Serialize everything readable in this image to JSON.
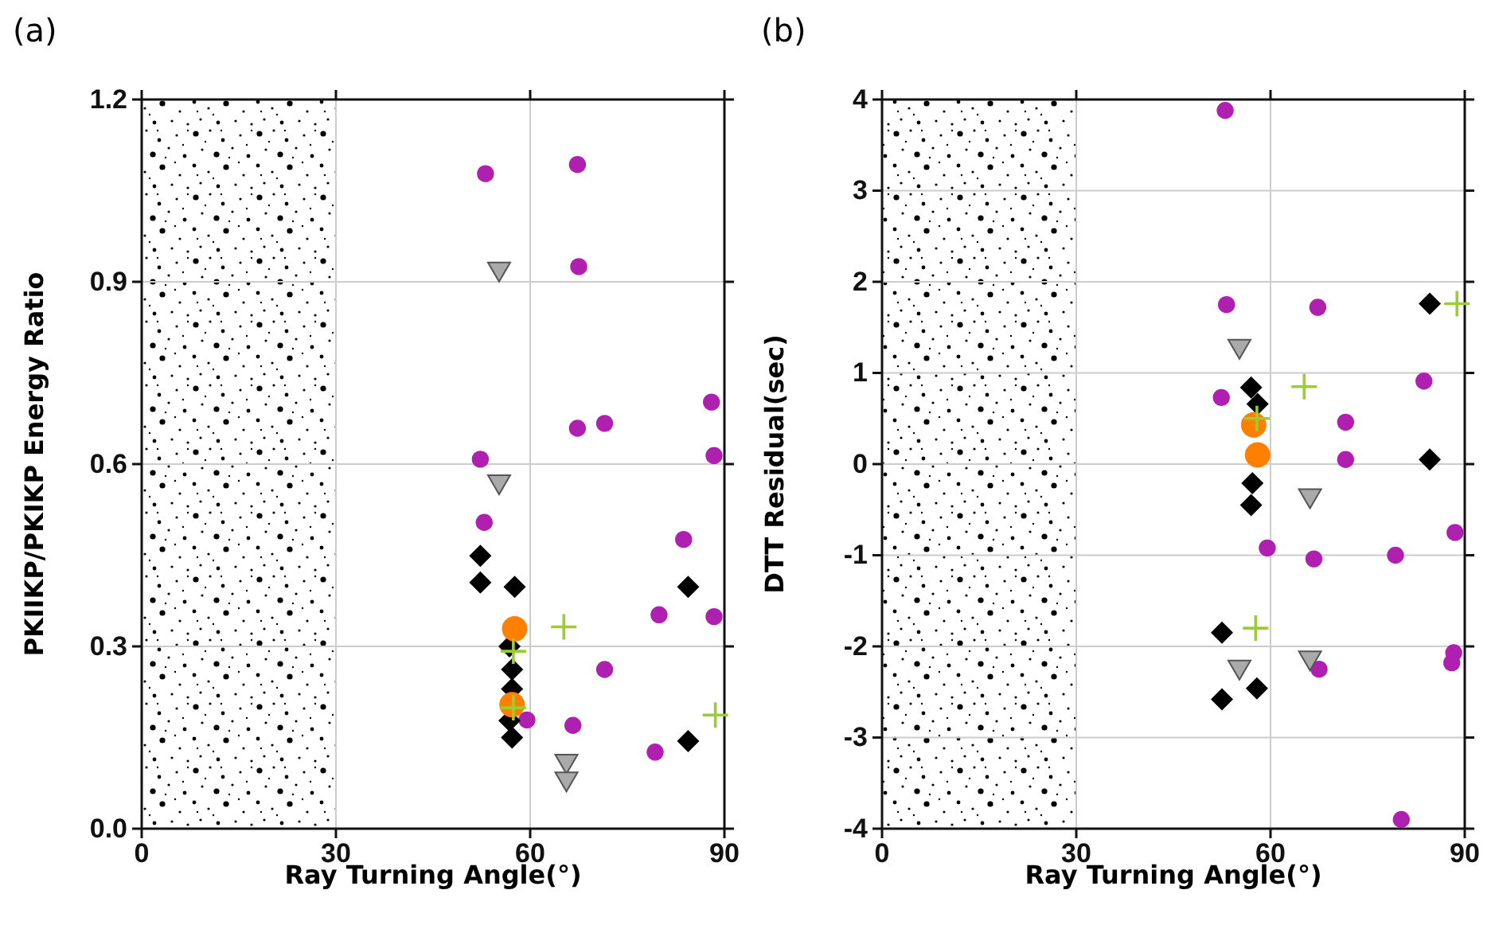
{
  "chart_data": [
    {
      "type": "scatter",
      "title": "(a)",
      "xlabel": "Ray Turning Angle(°)",
      "ylabel": "PKIIKP/PKIKP Energy Ratio",
      "xlim": [
        0,
        90
      ],
      "xticks": [
        0,
        30,
        60,
        90
      ],
      "ylim": [
        0,
        1.2
      ],
      "yticks": [
        {
          "value": 0,
          "label": "0.0"
        },
        0.3,
        0.6,
        0.9,
        1.2
      ],
      "grid": true,
      "bands": [
        {
          "axis": "x",
          "from": 0,
          "to": 30
        }
      ],
      "series": [
        {
          "color": "#b020b0",
          "marker": "circle",
          "x": [
            53.1,
            67.3,
            67.5,
            88.0,
            67.3,
            71.5,
            52.3,
            88.4,
            52.9,
            83.7,
            79.9,
            88.4,
            71.5,
            59.5,
            66.6,
            79.3
          ],
          "values": [
            1.078,
            1.093,
            0.925,
            0.702,
            0.659,
            0.667,
            0.608,
            0.614,
            0.504,
            0.476,
            0.352,
            0.349,
            0.262,
            0.179,
            0.17,
            0.126
          ]
        },
        {
          "color": "#aaaaaa",
          "marker": "triangle",
          "x": [
            55.2,
            55.2,
            65.6,
            65.6
          ],
          "values": [
            0.916,
            0.566,
            0.106,
            0.077
          ]
        },
        {
          "color": "#000000",
          "marker": "diamond",
          "x": [
            52.3,
            84.4,
            57.2,
            57.2
          ],
          "values": [
            0.449,
            0.398,
            0.262,
            0.15
          ]
        },
        {
          "color": "#000000",
          "marker": "diamond",
          "x": [
            52.3,
            57.6,
            56.8,
            57.2,
            56.8,
            84.4
          ],
          "values": [
            0.405,
            0.398,
            0.3,
            0.23,
            0.178,
            0.144
          ]
        },
        {
          "color": "#ff8000",
          "marker": "circle",
          "x": [
            57.6,
            57.2
          ],
          "values": [
            0.329,
            0.204
          ]
        },
        {
          "color": "#9acd32",
          "marker": "cross",
          "x": [
            65.2,
            57.4,
            57.4,
            88.6
          ],
          "values": [
            0.332,
            0.292,
            0.199,
            0.187
          ]
        }
      ]
    },
    {
      "type": "scatter",
      "title": "(b)",
      "xlabel": "Ray Turning Angle(°)",
      "ylabel": "DTT Residual(sec)",
      "xlim": [
        0,
        90
      ],
      "xticks": [
        0,
        30,
        60,
        90
      ],
      "ylim": [
        -4,
        4
      ],
      "yticks": [
        -4,
        -3,
        -2,
        -1,
        0,
        1,
        2,
        3,
        4
      ],
      "grid": true,
      "bands": [
        {
          "axis": "x",
          "from": 0,
          "to": 30
        }
      ],
      "series": [
        {
          "color": "#b020b0",
          "marker": "circle",
          "x": [
            53.0,
            53.2,
            67.3,
            52.4,
            83.7,
            71.6,
            71.6,
            88.5,
            59.5,
            66.7,
            79.3,
            67.5,
            88.3,
            88.0,
            80.2
          ],
          "values": [
            3.88,
            1.75,
            1.72,
            0.73,
            0.91,
            0.46,
            0.05,
            -0.75,
            -0.92,
            -1.04,
            -1.0,
            -2.25,
            -2.07,
            -2.18,
            -3.9
          ]
        },
        {
          "color": "#aaaaaa",
          "marker": "triangle",
          "x": [
            55.2,
            66.1,
            55.2,
            66.1
          ],
          "values": [
            1.26,
            -0.38,
            -2.26,
            -2.16
          ]
        },
        {
          "color": "#000000",
          "marker": "diamond",
          "x": [
            84.6,
            58.0,
            57.2,
            57.0,
            52.5
          ],
          "values": [
            1.76,
            0.66,
            -0.21,
            -0.45,
            -2.58
          ]
        },
        {
          "color": "#000000",
          "marker": "diamond",
          "x": [
            57.0,
            84.6,
            52.5,
            57.9
          ],
          "values": [
            0.84,
            0.05,
            -1.85,
            -2.46
          ]
        },
        {
          "color": "#ff8000",
          "marker": "circle",
          "x": [
            57.4,
            58.0
          ],
          "values": [
            0.43,
            0.1
          ]
        },
        {
          "color": "#9acd32",
          "marker": "cross",
          "x": [
            57.9,
            65.2,
            57.7,
            88.8
          ],
          "values": [
            0.5,
            0.85,
            -1.8,
            1.76
          ]
        }
      ]
    }
  ]
}
